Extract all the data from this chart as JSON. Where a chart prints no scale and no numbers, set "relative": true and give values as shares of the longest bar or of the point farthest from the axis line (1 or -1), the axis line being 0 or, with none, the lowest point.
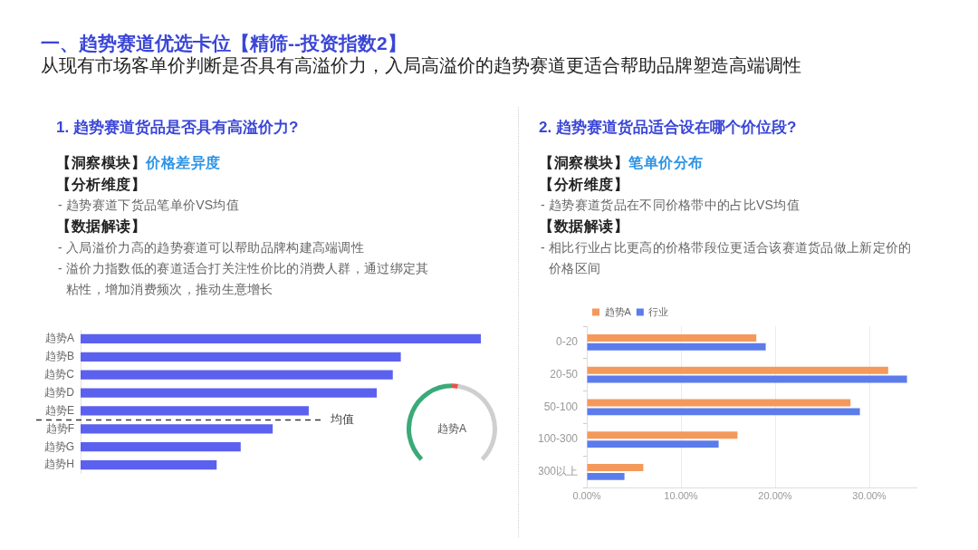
{
  "chart_data": [
    {
      "type": "other",
      "title": "一、趋势赛道优选卡位【精筛--投资指数2】",
      "subtitle": "从现有市场客单价判断是否具有高溢价力，入局高溢价的趋势赛道更适合帮助品牌塑造高端调性"
    },
    {
      "type": "bar",
      "orientation": "horizontal",
      "title": "1. 趋势赛道货品是否具有高溢价力?",
      "annotations": [
        "【洞察模块】",
        "价格差异度",
        "【分析维度】",
        "- 趋势赛道下货品笔单价VS均值",
        "【数据解读】",
        "- 入局溢价力高的趋势赛道可以帮助品牌构建高端调性",
        "- 溢价力指数低的赛道适合打关注性价比的消费人群，通过绑定其粘性，增加消费频次，推动生意增长",
        {
          "text": "均值"
        }
      ],
      "categories": [
        "趋势A",
        "趋势B",
        "趋势C",
        "趋势D",
        "趋势E",
        "趋势F",
        "趋势G",
        "趋势H"
      ],
      "values": [
        1,
        0.8,
        0.78,
        0.74,
        0.57,
        0.48,
        0.4,
        0.34
      ],
      "color": "#5b61ee",
      "relative": true
    },
    {
      "type": "donut",
      "title": "趋势A",
      "categories": [
        null,
        null,
        null
      ],
      "values": [
        50,
        3,
        47
      ],
      "colors": [
        "#3aaa78",
        "#e0564a",
        "#cfcfcf"
      ]
    },
    {
      "type": "bar",
      "orientation": "horizontal",
      "title": "2. 趋势赛道货品适合设在哪个价位段?",
      "annotations": [
        "【洞察模块】",
        "笔单价分布",
        "【分析维度】",
        "- 趋势赛道货品在不同价格带中的占比VS均值",
        "【数据解读】",
        "- 相比行业占比更高的价格带段位更适合该赛道货品做上新定价的价格区间"
      ],
      "categories": [
        "0-20",
        "20-50",
        "50-100",
        "100-300",
        "300以上"
      ],
      "series": [
        {
          "name": "趋势A",
          "color": "#f4995c",
          "values": [
            18,
            32,
            28,
            16,
            6
          ]
        },
        {
          "name": "行业",
          "color": "#5c7cec",
          "values": [
            19,
            34,
            29,
            14,
            4
          ]
        }
      ],
      "xlim": [
        0,
        35
      ],
      "xticks": [
        {
          "value": 0,
          "label": "0.00%"
        },
        {
          "value": 10,
          "label": "10.00%"
        },
        {
          "value": 20,
          "label": "20.00%"
        },
        {
          "value": 30,
          "label": "30.00%"
        }
      ],
      "grid": "x",
      "legend": "top left"
    }
  ]
}
